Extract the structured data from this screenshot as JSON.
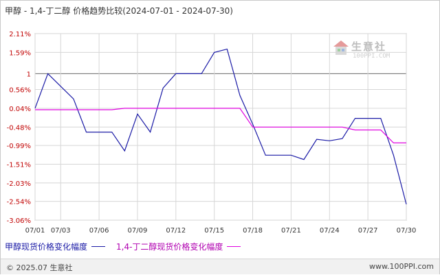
{
  "title": "甲醇 - 1,4-丁二醇 价格趋势比较(2024-07-01 - 2024-07-30)",
  "watermark": {
    "text": "生意社",
    "sub": "100PPI.COM"
  },
  "footer": {
    "left": "© 2025.07 生意社",
    "right": "www.100PPI.com"
  },
  "chart_data": {
    "type": "line",
    "title": "甲醇 - 1,4-丁二醇 价格趋势比较(2024-07-01 - 2024-07-30)",
    "xlabel": "",
    "ylabel": "",
    "x_ticks": [
      "07/01",
      "07/03",
      "07/06",
      "07/09",
      "07/12",
      "07/15",
      "07/18",
      "07/21",
      "07/24",
      "07/27",
      "07/30"
    ],
    "y_ticks": [
      2.11,
      1.59,
      1,
      0.56,
      0.04,
      -0.48,
      -0.99,
      -1.51,
      -2.03,
      -2.54,
      -3.06
    ],
    "y_tick_labels": [
      "2.11%",
      "1.59%",
      "1",
      "0.56%",
      "0.04%",
      "-0.48%",
      "-0.99%",
      "-1.51%",
      "-2.03%",
      "-2.54%",
      "-3.06%"
    ],
    "ylim": [
      -3.06,
      2.11
    ],
    "grid": true,
    "legend_position": "bottom",
    "series": [
      {
        "name": "甲醇现货价格变化幅度",
        "color": "#1a1aa6",
        "x": [
          "07/01",
          "07/02",
          "07/03",
          "07/04",
          "07/05",
          "07/06",
          "07/07",
          "07/08",
          "07/09",
          "07/10",
          "07/11",
          "07/12",
          "07/13",
          "07/14",
          "07/15",
          "07/16",
          "07/17",
          "07/18",
          "07/19",
          "07/20",
          "07/21",
          "07/22",
          "07/23",
          "07/24",
          "07/25",
          "07/26",
          "07/27",
          "07/28",
          "07/29",
          "07/30"
        ],
        "values": [
          0.04,
          1.0,
          0.65,
          0.3,
          -0.62,
          -0.62,
          -0.62,
          -1.14,
          -0.12,
          -0.62,
          0.6,
          1.0,
          1.0,
          1.0,
          1.59,
          1.68,
          0.4,
          -0.4,
          -1.26,
          -1.26,
          -1.26,
          -1.38,
          -0.82,
          -0.86,
          -0.8,
          -0.24,
          -0.24,
          -0.24,
          -1.26,
          -2.62
        ]
      },
      {
        "name": "1,4-丁二醇现货价格变化幅度",
        "color": "#e000e0",
        "x": [
          "07/01",
          "07/02",
          "07/03",
          "07/04",
          "07/05",
          "07/06",
          "07/07",
          "07/08",
          "07/09",
          "07/10",
          "07/11",
          "07/12",
          "07/13",
          "07/14",
          "07/15",
          "07/16",
          "07/17",
          "07/18",
          "07/19",
          "07/20",
          "07/21",
          "07/22",
          "07/23",
          "07/24",
          "07/25",
          "07/26",
          "07/27",
          "07/28",
          "07/29",
          "07/30"
        ],
        "values": [
          0.0,
          0.0,
          0.0,
          0.0,
          0.0,
          0.0,
          0.0,
          0.04,
          0.04,
          0.04,
          0.04,
          0.04,
          0.04,
          0.04,
          0.04,
          0.04,
          0.04,
          -0.48,
          -0.48,
          -0.48,
          -0.48,
          -0.48,
          -0.48,
          -0.48,
          -0.48,
          -0.56,
          -0.56,
          -0.56,
          -0.92,
          -0.92
        ]
      }
    ]
  }
}
